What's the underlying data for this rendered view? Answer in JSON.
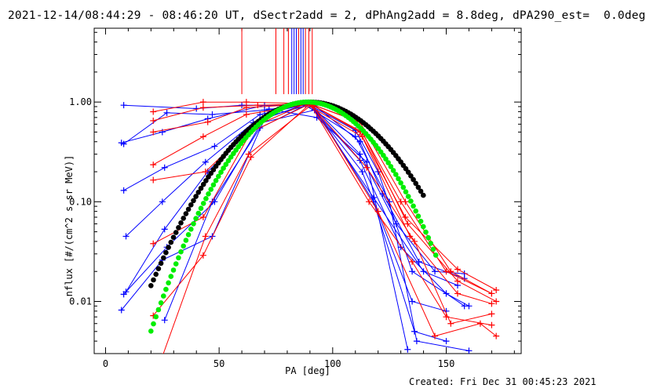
{
  "header": {
    "title": "2021-12-14/08:44:29 - 08:46:20 UT, dSectr2add = 2, dPhAng2add = 8.8deg, dPA290_est=  0.0deg"
  },
  "footer": {
    "created": "Created: Fri Dec 31 00:45:23 2021"
  },
  "chart_data": {
    "type": "line",
    "title": "2021-12-14/08:44:29 - 08:46:20 UT, dSectr2add = 2, dPhAng2add = 8.8deg, dPA290_est=  0.0deg",
    "xlabel": "PA [deg]",
    "ylabel": "nflux [#/(cm^2 s sr MeV)]",
    "xlim": [
      -5,
      183
    ],
    "ylim": [
      0.003,
      5.5
    ],
    "yscale": "log",
    "grid": false,
    "x_ticks": [
      0,
      50,
      100,
      150
    ],
    "x_tick_labels": [
      "0",
      "50",
      "100",
      "150"
    ],
    "y_ticks": [
      0.01,
      0.1,
      1.0
    ],
    "y_tick_labels": [
      "0.01",
      "0.10",
      "1.00"
    ],
    "colors": {
      "red": "#ff0000",
      "blue": "#0000ff",
      "green": "#00ee00",
      "black": "#000000"
    },
    "vertical_markers": [
      {
        "x": 60,
        "y0": 1.2,
        "color": "#ff0000"
      },
      {
        "x": 75,
        "y0": 1.2,
        "color": "#ff0000"
      },
      {
        "x": 78.5,
        "y0": 1.2,
        "color": "#ff0000"
      },
      {
        "x": 80.5,
        "y0": 1.2,
        "color": "#ff0000"
      },
      {
        "x": 82,
        "y0": 1.2,
        "color": "#0000ff"
      },
      {
        "x": 83,
        "y0": 1.2,
        "color": "#0000ff"
      },
      {
        "x": 84,
        "y0": 1.2,
        "color": "#0000ff"
      },
      {
        "x": 85,
        "y0": 1.2,
        "color": "#ff0000"
      },
      {
        "x": 86,
        "y0": 1.2,
        "color": "#0000ff"
      },
      {
        "x": 87,
        "y0": 1.2,
        "color": "#0000ff"
      },
      {
        "x": 88,
        "y0": 1.2,
        "color": "#ff0000"
      },
      {
        "x": 89.5,
        "y0": 1.2,
        "color": "#ff0000"
      },
      {
        "x": 91,
        "y0": 1.2,
        "color": "#ff0000"
      }
    ],
    "series": [
      {
        "color": "#0000ff",
        "marker": "plus",
        "points": [
          [
            8,
            0.93
          ],
          [
            40,
            0.86
          ],
          [
            60,
            0.93
          ],
          [
            90,
            0.93
          ],
          [
            110,
            0.52
          ],
          [
            120,
            0.2
          ],
          [
            135,
            0.02
          ],
          [
            150,
            0.012
          ],
          [
            158,
            0.009
          ]
        ]
      },
      {
        "color": "#0000ff",
        "marker": "plus",
        "points": [
          [
            7,
            0.39
          ],
          [
            25,
            0.5
          ],
          [
            45,
            0.68
          ],
          [
            70,
            0.93
          ],
          [
            92,
            0.93
          ],
          [
            112,
            0.4
          ],
          [
            122,
            0.12
          ],
          [
            138,
            0.025
          ],
          [
            158,
            0.017
          ]
        ]
      },
      {
        "color": "#0000ff",
        "marker": "plus",
        "points": [
          [
            8,
            0.38
          ],
          [
            27,
            0.78
          ],
          [
            47,
            0.75
          ],
          [
            70,
            0.83
          ],
          [
            90,
            0.96
          ],
          [
            112,
            0.3
          ],
          [
            128,
            0.06
          ],
          [
            145,
            0.02
          ],
          [
            158,
            0.019
          ]
        ]
      },
      {
        "color": "#0000ff",
        "marker": "plus",
        "points": [
          [
            8,
            0.13
          ],
          [
            26,
            0.22
          ],
          [
            48,
            0.36
          ],
          [
            68,
            0.75
          ],
          [
            90,
            0.96
          ],
          [
            118,
            0.11
          ],
          [
            140,
            0.02
          ],
          [
            155,
            0.0145
          ]
        ]
      },
      {
        "color": "#0000ff",
        "marker": "plus",
        "points": [
          [
            9,
            0.045
          ],
          [
            25,
            0.1
          ],
          [
            44,
            0.25
          ],
          [
            65,
            0.62
          ],
          [
            89,
            0.97
          ],
          [
            112,
            0.26
          ],
          [
            130,
            0.035
          ],
          [
            150,
            0.012
          ],
          [
            160,
            0.009
          ]
        ]
      },
      {
        "color": "#0000ff",
        "marker": "plus",
        "points": [
          [
            9,
            0.0125
          ],
          [
            26,
            0.053
          ],
          [
            45,
            0.2
          ],
          [
            66,
            0.6
          ],
          [
            92,
            0.83
          ],
          [
            113,
            0.2
          ],
          [
            135,
            0.01
          ],
          [
            150,
            0.008
          ]
        ]
      },
      {
        "color": "#0000ff",
        "marker": "plus",
        "points": [
          [
            8,
            0.0118
          ],
          [
            27,
            0.035
          ],
          [
            48,
            0.1
          ],
          [
            70,
            0.7
          ],
          [
            91,
            0.96
          ],
          [
            118,
            0.1
          ],
          [
            136,
            0.005
          ],
          [
            150,
            0.004
          ]
        ]
      },
      {
        "color": "#0000ff",
        "marker": "plus",
        "points": [
          [
            7,
            0.0082
          ],
          [
            25,
            0.026
          ],
          [
            47,
            0.045
          ],
          [
            72,
            0.85
          ],
          [
            93,
            0.7
          ],
          [
            115,
            0.25
          ],
          [
            133,
            0.0033
          ]
        ]
      },
      {
        "color": "#0000ff",
        "marker": "plus",
        "points": [
          [
            26,
            0.0065
          ],
          [
            47,
            0.1
          ],
          [
            68,
            0.55
          ],
          [
            88,
            0.93
          ],
          [
            110,
            0.45
          ],
          [
            125,
            0.1
          ],
          [
            137,
            0.004
          ],
          [
            160,
            0.0032
          ]
        ]
      },
      {
        "color": "#ff0000",
        "marker": "plus",
        "points": [
          [
            21,
            0.8
          ],
          [
            43,
            1.0
          ],
          [
            62,
            1.0
          ],
          [
            90,
            0.96
          ],
          [
            110,
            0.65
          ],
          [
            130,
            0.1
          ],
          [
            150,
            0.02
          ],
          [
            170,
            0.012
          ]
        ]
      },
      {
        "color": "#ff0000",
        "marker": "plus",
        "points": [
          [
            21,
            0.65
          ],
          [
            43,
            0.88
          ],
          [
            67,
            0.93
          ],
          [
            90,
            0.96
          ],
          [
            112,
            0.63
          ],
          [
            132,
            0.1
          ],
          [
            152,
            0.02
          ],
          [
            170,
            0.012
          ]
        ]
      },
      {
        "color": "#ff0000",
        "marker": "plus",
        "points": [
          [
            21,
            0.5
          ],
          [
            45,
            0.63
          ],
          [
            62,
            0.88
          ],
          [
            90,
            0.96
          ],
          [
            112,
            0.5
          ],
          [
            132,
            0.07
          ],
          [
            155,
            0.021
          ],
          [
            172,
            0.013
          ]
        ]
      },
      {
        "color": "#ff0000",
        "marker": "plus",
        "points": [
          [
            21,
            0.235
          ],
          [
            43,
            0.45
          ],
          [
            62,
            0.75
          ],
          [
            90,
            0.96
          ],
          [
            113,
            0.5
          ],
          [
            133,
            0.06
          ],
          [
            155,
            0.016
          ],
          [
            172,
            0.01
          ]
        ]
      },
      {
        "color": "#ff0000",
        "marker": "plus",
        "points": [
          [
            21,
            0.165
          ],
          [
            44,
            0.2
          ],
          [
            64,
            0.55
          ],
          [
            88,
            0.96
          ],
          [
            113,
            0.45
          ],
          [
            134,
            0.045
          ],
          [
            155,
            0.012
          ],
          [
            170,
            0.0095
          ]
        ]
      },
      {
        "color": "#ff0000",
        "marker": "plus",
        "points": [
          [
            21,
            0.038
          ],
          [
            43,
            0.07
          ],
          [
            64,
            0.5
          ],
          [
            90,
            0.96
          ],
          [
            115,
            0.22
          ],
          [
            136,
            0.04
          ],
          [
            152,
            0.006
          ],
          [
            170,
            0.0075
          ]
        ]
      },
      {
        "color": "#ff0000",
        "marker": "plus",
        "points": [
          [
            21,
            0.0072
          ],
          [
            43,
            0.029
          ],
          [
            64,
            0.28
          ],
          [
            90,
            0.96
          ],
          [
            116,
            0.1
          ],
          [
            135,
            0.025
          ],
          [
            150,
            0.007
          ],
          [
            170,
            0.0058
          ]
        ]
      },
      {
        "color": "#ff0000",
        "marker": "plus",
        "points": [
          [
            25,
            0.0028
          ],
          [
            44,
            0.045
          ],
          [
            63,
            0.3
          ],
          [
            91,
            0.95
          ],
          [
            120,
            0.08
          ],
          [
            145,
            0.0045
          ],
          [
            165,
            0.006
          ],
          [
            172,
            0.0045
          ]
        ]
      }
    ],
    "fits": [
      {
        "name": "",
        "color": "#000000",
        "x0": 20,
        "x1": 140,
        "center": 90,
        "peak": 1.0,
        "width": 34
      },
      {
        "name": "",
        "color": "#00ee00",
        "x0": 20,
        "x1": 146,
        "center": 89,
        "peak": 1.0,
        "width": 30
      }
    ]
  }
}
